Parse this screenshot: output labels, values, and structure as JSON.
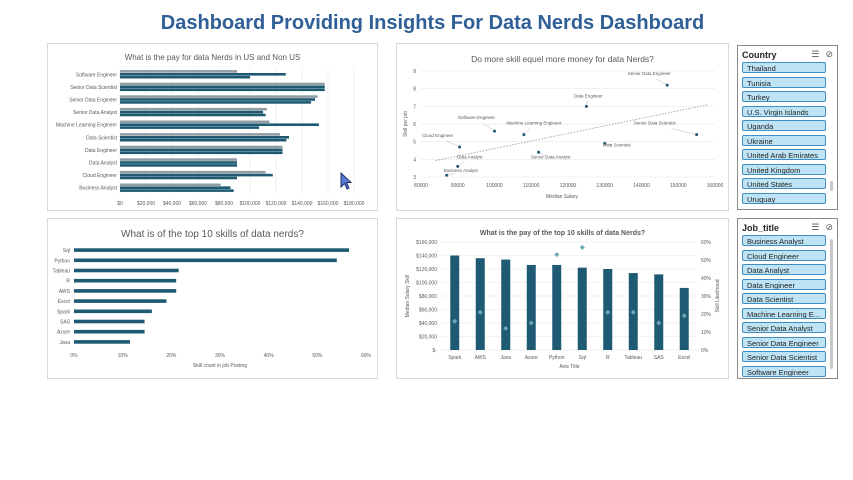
{
  "dashboard_title": "Dashboard Providing Insights For Data Nerds Dashboard",
  "colors": {
    "title": "#2f5f96",
    "dark_series": "#1f5a73",
    "light_series": "#7f8c95",
    "accent": "#6ea7b5"
  },
  "chart_data": [
    {
      "id": "pay-us-nonus",
      "type": "bar",
      "orientation": "horizontal",
      "title": "What is the pay for data Nerds in US and Non US",
      "categories": [
        "Software Engineer",
        "Senior Data Scientist",
        "Senior Data Engineer",
        "Senior Data Analyst",
        "Machine Learning Engineer",
        "Data Scientist",
        "Data Engineer",
        "Data Analyst",
        "Cloud Engineer",
        "Business Analyst"
      ],
      "series": [
        {
          "values": [
            90000,
            157500,
            152000,
            113000,
            115000,
            123000,
            125000,
            90000,
            112000,
            77500
          ]
        },
        {
          "values": [
            127500,
            157500,
            150000,
            110000,
            153000,
            130000,
            125000,
            90000,
            117500,
            85000
          ]
        },
        {
          "values": [
            100000,
            157500,
            147000,
            112000,
            107000,
            128000,
            125000,
            90000,
            90000,
            87500
          ]
        }
      ],
      "xticks": [
        "$0",
        "$20,000",
        "$40,000",
        "$60,000",
        "$80,000",
        "$100,000",
        "$120,000",
        "$140,000",
        "$160,000",
        "$180,000"
      ],
      "xlim": [
        0,
        180000
      ]
    },
    {
      "id": "skill-vs-money",
      "type": "scatter",
      "title": "Do more skill equel more money for data Nerds?",
      "xlabel": "Median Salary",
      "ylabel": "Skill per job",
      "points": [
        {
          "label": "Business Analyst",
          "x": 87000,
          "y": 3.1
        },
        {
          "label": "Data Analyst",
          "x": 90000,
          "y": 3.6
        },
        {
          "label": "Cloud Engineer",
          "x": 90500,
          "y": 4.7
        },
        {
          "label": "Software Engineer",
          "x": 100000,
          "y": 5.6
        },
        {
          "label": "Machine Learning Engineer",
          "x": 108000,
          "y": 5.4
        },
        {
          "label": "Senior Data Analyst",
          "x": 112000,
          "y": 4.4
        },
        {
          "label": "Data Engineer",
          "x": 125000,
          "y": 7.0
        },
        {
          "label": "Data Scientist",
          "x": 130000,
          "y": 4.9
        },
        {
          "label": "Senior Data Engineer",
          "x": 147000,
          "y": 8.2
        },
        {
          "label": "Senior Data Scientist",
          "x": 155000,
          "y": 5.4
        }
      ],
      "xticks": [
        "80000",
        "90000",
        "100000",
        "110000",
        "120000",
        "130000",
        "140000",
        "150000",
        "160000"
      ],
      "xlim": [
        80000,
        160000
      ],
      "yticks": [
        "3",
        "4",
        "5",
        "6",
        "7",
        "8",
        "9"
      ],
      "ylim": [
        3,
        9
      ],
      "trendline": true
    },
    {
      "id": "top10-skills",
      "type": "bar",
      "orientation": "horizontal",
      "title": "What is of the top 10 skills of data nerds?",
      "xlabel": "Skill count in job Posting",
      "categories": [
        "Sql",
        "Python",
        "Tableau",
        "R",
        "AWS",
        "Excel",
        "Spark",
        "SAS",
        "Azure",
        "Java"
      ],
      "values": [
        0.565,
        0.54,
        0.215,
        0.21,
        0.21,
        0.19,
        0.16,
        0.145,
        0.145,
        0.115
      ],
      "xticks": [
        "0%",
        "10%",
        "20%",
        "30%",
        "40%",
        "50%",
        "60%"
      ],
      "xlim": [
        0,
        0.6
      ]
    },
    {
      "id": "top10-skills-pay",
      "type": "bar",
      "title": "What is the pay of the top 10 skills of data Nerds?",
      "xlabel": "Axis Title",
      "ylabel": "Median Salary Skill",
      "ylabel2": "Skill Likelihood",
      "categories": [
        "Spark",
        "AWS",
        "Java",
        "Azure",
        "Python",
        "Sql",
        "R",
        "Tableau",
        "SAS",
        "Excel"
      ],
      "values": [
        140000,
        136000,
        134000,
        126000,
        126000,
        122000,
        120000,
        114000,
        112000,
        92000
      ],
      "line_values": [
        0.16,
        0.21,
        0.12,
        0.15,
        0.53,
        0.57,
        0.21,
        0.21,
        0.15,
        0.19
      ],
      "yticks": [
        "$-",
        "$20,000",
        "$40,000",
        "$60,000",
        "$80,000",
        "$100,000",
        "$120,000",
        "$140,000",
        "$160,000"
      ],
      "ylim": [
        0,
        160000
      ],
      "y2ticks": [
        "0%",
        "10%",
        "20%",
        "30%",
        "40%",
        "50%",
        "60%"
      ],
      "y2lim": [
        0,
        0.6
      ]
    }
  ],
  "slicers": {
    "country": {
      "title": "Country",
      "items": [
        "Thailand",
        "Tunisia",
        "Turkey",
        "U.S. Virgin Islands",
        "Uganda",
        "Ukraine",
        "United Arab Emirates",
        "United Kingdom",
        "United States",
        "Uruguay"
      ]
    },
    "job_title": {
      "title": "Job_title",
      "items": [
        "Business Analyst",
        "Cloud Engineer",
        "Data Analyst",
        "Data Engineer",
        "Data Scientist",
        "Machine Learning E...",
        "Senior Data Analyst",
        "Senior Data Engineer",
        "Senior Data Scientist",
        "Software Engineer"
      ]
    }
  }
}
